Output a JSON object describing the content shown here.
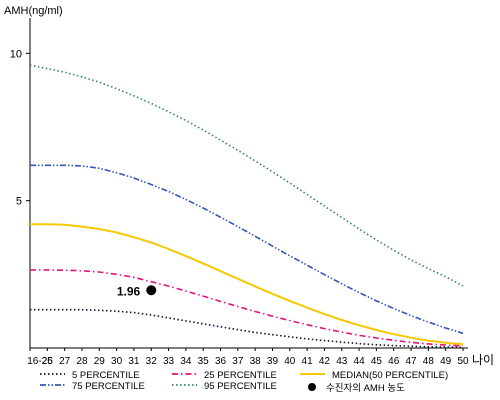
{
  "chart_data": {
    "type": "line",
    "ylabel": "AMH(ng/ml)",
    "xlabel": "나이",
    "x": [
      "16-25",
      "26",
      "27",
      "28",
      "29",
      "30",
      "31",
      "32",
      "33",
      "34",
      "35",
      "36",
      "37",
      "38",
      "39",
      "40",
      "41",
      "42",
      "43",
      "44",
      "45",
      "46",
      "47",
      "48",
      "49",
      "50"
    ],
    "yticks": [
      5,
      10
    ],
    "ylim": [
      0,
      11.2
    ],
    "grid": false,
    "legend_position": "bottom",
    "series": [
      {
        "name": "5 PERCENTILE",
        "color": "#111133",
        "dash": "dotted",
        "values": [
          1.3,
          1.3,
          1.3,
          1.3,
          1.28,
          1.25,
          1.2,
          1.12,
          1.02,
          0.92,
          0.82,
          0.72,
          0.62,
          0.53,
          0.45,
          0.38,
          0.31,
          0.25,
          0.2,
          0.15,
          0.11,
          0.08,
          0.06,
          0.04,
          0.03,
          0.02
        ]
      },
      {
        "name": "25 PERCENTILE",
        "color": "#e0157c",
        "dash": "dashdot",
        "values": [
          2.65,
          2.65,
          2.64,
          2.62,
          2.58,
          2.5,
          2.4,
          2.25,
          2.1,
          1.93,
          1.76,
          1.58,
          1.41,
          1.24,
          1.08,
          0.93,
          0.79,
          0.66,
          0.54,
          0.43,
          0.34,
          0.26,
          0.19,
          0.14,
          0.1,
          0.07
        ]
      },
      {
        "name": "MEDIAN(50 PERCENTILE)",
        "color": "#f5c800",
        "dash": "solid",
        "values": [
          4.2,
          4.2,
          4.18,
          4.12,
          4.04,
          3.92,
          3.76,
          3.58,
          3.36,
          3.12,
          2.87,
          2.61,
          2.35,
          2.09,
          1.84,
          1.6,
          1.37,
          1.15,
          0.95,
          0.77,
          0.61,
          0.47,
          0.35,
          0.25,
          0.18,
          0.13
        ]
      },
      {
        "name": "75 PERCENTILE",
        "color": "#3355bb",
        "dash": "dashdotdot",
        "values": [
          6.2,
          6.2,
          6.2,
          6.18,
          6.1,
          5.95,
          5.77,
          5.55,
          5.31,
          5.04,
          4.75,
          4.44,
          4.12,
          3.79,
          3.46,
          3.13,
          2.81,
          2.49,
          2.18,
          1.88,
          1.6,
          1.34,
          1.1,
          0.88,
          0.68,
          0.5
        ]
      },
      {
        "name": "95 PERCENTILE",
        "color": "#2e8b57",
        "dash": "dotted",
        "values": [
          9.6,
          9.48,
          9.36,
          9.2,
          9.02,
          8.8,
          8.56,
          8.3,
          8.02,
          7.72,
          7.4,
          7.06,
          6.71,
          6.35,
          5.98,
          5.6,
          5.21,
          4.82,
          4.43,
          4.04,
          3.67,
          3.32,
          2.99,
          2.69,
          2.42,
          2.1
        ]
      }
    ],
    "points": [
      {
        "name": "수진자의 AMH 농도",
        "x": "32",
        "y": 1.96,
        "label": "1.96",
        "color": "#000000"
      }
    ]
  }
}
